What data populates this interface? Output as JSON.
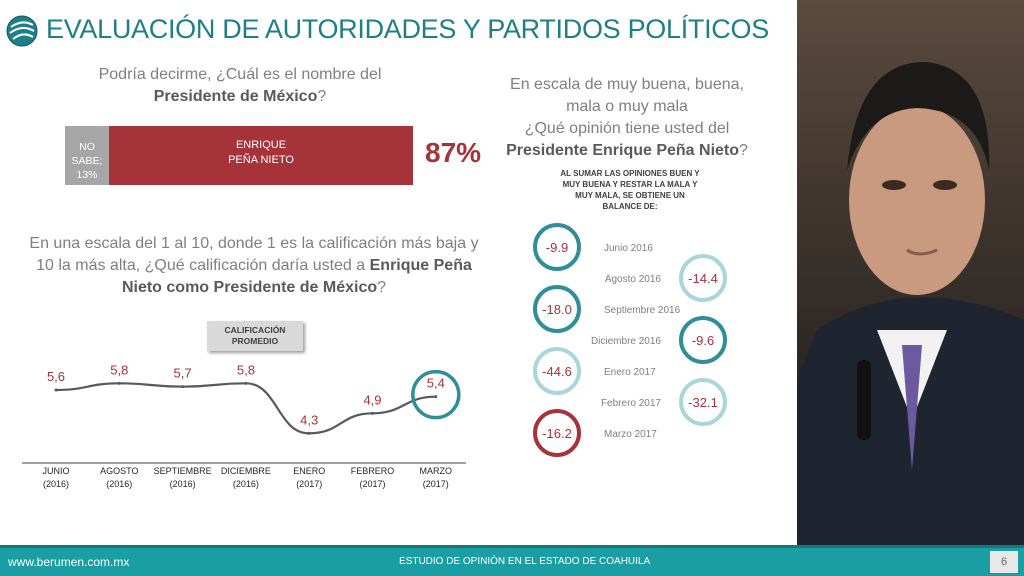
{
  "title": "EVALUACIÓN DE AUTORIDADES Y PARTIDOS POLÍTICOS",
  "q1": {
    "pre": "Podría decirme, ¿Cuál es el nombre del ",
    "bold": "Presidente de México",
    "post": "?"
  },
  "q2": {
    "line1": "En escala de muy buena, buena,",
    "line2": "mala o muy mala",
    "line3": "¿Qué opinión tiene usted del",
    "bold": "Presidente Enrique Peña Nieto",
    "post": "?"
  },
  "q3": {
    "pre": "En una escala del 1 al 10, donde 1 es la calificación más baja y 10 la más alta, ¿Qué calificación daría usted a ",
    "bold": "Enrique Peña Nieto como Presidente de México",
    "post": "?"
  },
  "note": "AL SUMAR LAS OPINIONES BUEN Y MUY BUENA Y RESTAR LA MALA Y MUY MALA, SE OBTIENE UN BALANCE DE:",
  "badge": {
    "line1": "CALIFICACIÓN",
    "line2": "PROMEDIO"
  },
  "recognition_pct": "87%",
  "footer": {
    "website": "www.berumen.com.mx",
    "study": "ESTUDIO DE OPINIÓN EN EL ESTADO DE COAHUILA",
    "page": "6"
  },
  "colors": {
    "accent": "#1f7f86",
    "red": "#a7333a",
    "gray": "#a6a6a6",
    "teal_circle": "#2f8e97",
    "light_circle": "#a9d6dc"
  },
  "chart_data": [
    {
      "type": "bar",
      "categories": [
        "NO SABE;",
        "ENRIQUE PEÑA NIETO"
      ],
      "values": [
        13,
        87
      ],
      "labels": [
        "NO SABE;",
        "ENRIQUE PEÑA NIETO"
      ],
      "value_labels": [
        "13%",
        ""
      ]
    },
    {
      "type": "line",
      "categories": [
        "JUNIO (2016)",
        "AGOSTO (2016)",
        "SEPTIEMBRE (2016)",
        "DICIEMBRE (2016)",
        "ENERO (2017)",
        "FEBRERO (2017)",
        "MARZO (2017)"
      ],
      "tick_lines": [
        [
          "JUNIO",
          "(2016)"
        ],
        [
          "AGOSTO",
          "(2016)"
        ],
        [
          "SEPTIEMBRE",
          "(2016)"
        ],
        [
          "DICIEMBRE",
          "(2016)"
        ],
        [
          "ENERO",
          "(2017)"
        ],
        [
          "FEBRERO",
          "(2017)"
        ],
        [
          "MARZO",
          "(2017)"
        ]
      ],
      "values": [
        5.6,
        5.8,
        5.7,
        5.8,
        4.3,
        4.9,
        5.4
      ],
      "value_labels": [
        "5,6",
        "5,8",
        "5,7",
        "5,8",
        "4,3",
        "4,9",
        "5,4"
      ],
      "ylim": [
        3.5,
        6.5
      ],
      "grid": false
    },
    {
      "type": "scatter",
      "categories": [
        "Junio 2016",
        "Agosto 2016",
        "Septiembre 2016",
        "Diciembre 2016",
        "Enero 2017",
        "Febrero 2017",
        "Marzo 2017"
      ],
      "values": [
        -9.9,
        -14.4,
        -18.0,
        -9.6,
        -44.6,
        -32.1,
        -16.2
      ],
      "value_labels": [
        "-9.9",
        "-14.4",
        "-18.0",
        "-9.6",
        "-44.6",
        "-32.1",
        "-16.2"
      ]
    }
  ]
}
